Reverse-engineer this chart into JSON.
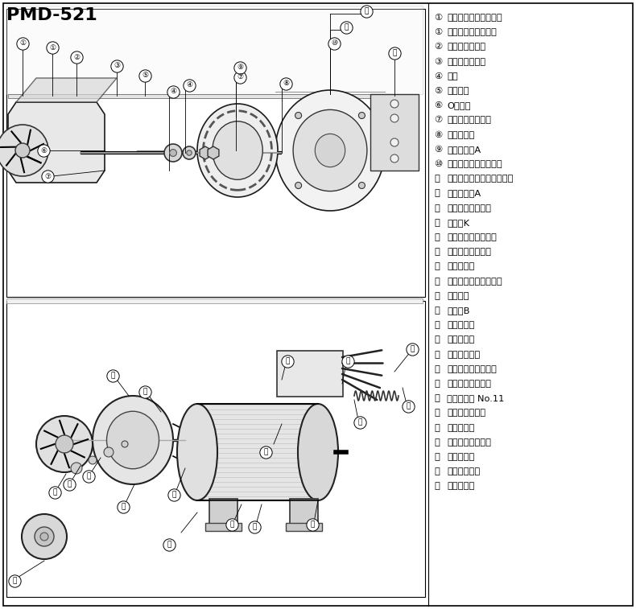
{
  "title": "PMD-521",
  "title_fontsize": 16,
  "bg_color": "#ffffff",
  "parts_list": [
    [
      "①",
      "ケーシング（ホース）"
    ],
    [
      "①",
      "ケーシング（ネジ）"
    ],
    [
      "②",
      "軸受ワッシャー"
    ],
    [
      "③",
      "ポンプシャフト"
    ],
    [
      "④",
      "軸受"
    ],
    [
      "⑤",
      "インペラ"
    ],
    [
      "⑥",
      "Oリング"
    ],
    [
      "⑦",
      "バックケーシング"
    ],
    [
      "⑧",
      "固定ナット"
    ],
    [
      "⑨",
      "マグネットA"
    ],
    [
      "⑩",
      "マグネットハウジング"
    ],
    [
      "⑪",
      "マグネットハウジング組品"
    ],
    [
      "⑫",
      "ブラケットA"
    ],
    [
      "⑬",
      "ボールベアリング"
    ],
    [
      "⑭",
      "ロータK"
    ],
    [
      "⑮",
      "スラストワッシャー"
    ],
    [
      "⑯",
      "ボールベアリング"
    ],
    [
      "⑰",
      "ロータ組品"
    ],
    [
      "⑱",
      "プレロードスプリング"
    ],
    [
      "⑲",
      "ステータ"
    ],
    [
      "⑳",
      "ケースB"
    ],
    [
      "⑴",
      "ケース組品"
    ],
    [
      "⑵",
      "ブッシング"
    ],
    [
      "⑶",
      "コンデンサー"
    ],
    [
      "⑷",
      "コンデンサーカバー"
    ],
    [
      "⑸",
      "ナイロンリベット"
    ],
    [
      "⑹",
      "ブッシング No.11"
    ],
    [
      "⑺",
      "コードクランプ"
    ],
    [
      "⑻",
      "電源コード"
    ],
    [
      "⑼",
      "ケーシング用ビス"
    ],
    [
      "⑽",
      "モータビス"
    ],
    [
      "⑾",
      "ポンプ部組品"
    ],
    [
      "⑿",
      "モータ組品"
    ]
  ],
  "border_color": "#000000",
  "text_color": "#000000",
  "fig_width": 7.9,
  "fig_height": 7.57,
  "dpi": 100
}
